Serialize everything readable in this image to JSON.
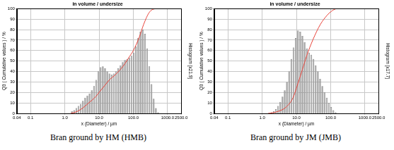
{
  "chart_data": [
    {
      "type": "histogram",
      "title": "in volume / undersize",
      "xlabel": "x (Diameter) / µm",
      "ylabel": "Q3 ( Cumulative values ) / %",
      "y2label": "Histogram [x21.9]",
      "caption": "Bran ground by HM (HMB)",
      "log": "x",
      "grid": true,
      "xlim": [
        0.04,
        2500
      ],
      "xticks": [
        {
          "value": 0.04,
          "label": "0.04"
        },
        0.1,
        {
          "value": 1,
          "label": "1.0"
        },
        {
          "value": 10,
          "label": "10.0"
        },
        {
          "value": 100,
          "label": "100.0"
        },
        {
          "value": 1000,
          "label": "1000.0"
        },
        {
          "value": 2500,
          "label": "2500.0"
        }
      ],
      "ylim": [
        0,
        100
      ],
      "yticks": [
        0,
        10,
        20,
        30,
        40,
        50,
        60,
        70,
        80,
        90,
        100
      ],
      "y2lim": [
        0,
        100
      ],
      "y2ticks": [],
      "series": [
        {
          "type": "bar",
          "axis": "y2",
          "color": "#a8a8a8",
          "bins": [
            1.5,
            1.74,
            2.02,
            2.34,
            2.71,
            3.15,
            3.65,
            4.24,
            4.92,
            5.7,
            6.62,
            7.67,
            8.9,
            10.3,
            12.0,
            13.9,
            16.1,
            18.7,
            21.7,
            25.2,
            29.2,
            33.9,
            39.3,
            45.6,
            52.9,
            61.4,
            71.2,
            82.6,
            95.8,
            111,
            129,
            150,
            174,
            201,
            234,
            271,
            315,
            365,
            423,
            491,
            570
          ],
          "values": [
            2,
            3,
            5,
            7,
            9,
            12,
            15,
            17,
            19,
            22,
            26,
            32,
            40,
            44,
            45,
            43,
            40,
            38,
            37,
            38,
            40,
            43,
            46,
            49,
            51,
            52,
            53,
            55,
            58,
            64,
            72,
            78,
            80,
            76,
            62,
            45,
            28,
            14,
            5,
            1
          ]
        },
        {
          "type": "line",
          "color": "#e8453c",
          "x": [
            1.5,
            2,
            3,
            5,
            8,
            10,
            15,
            20,
            30,
            50,
            80,
            100,
            150,
            200,
            300,
            500,
            800,
            2500
          ],
          "values": [
            0,
            1,
            4,
            10,
            16,
            20,
            27,
            32,
            37,
            45,
            55,
            60,
            73,
            85,
            97,
            100,
            100,
            100
          ]
        }
      ]
    },
    {
      "type": "histogram",
      "title": "in volume / undersize",
      "xlabel": "x (Diameter) / µm",
      "ylabel": "Q3 ( Cumulative values ) / %",
      "y2label": "Histogram [x17.7]",
      "caption": "Bran ground by JM (JMB)",
      "log": "x",
      "grid": true,
      "xlim": [
        0.04,
        2500
      ],
      "xticks": [
        {
          "value": 0.04,
          "label": "0.04"
        },
        0.1,
        {
          "value": 1,
          "label": "1.0"
        },
        {
          "value": 10,
          "label": "10.0"
        },
        {
          "value": 100,
          "label": "100.0"
        },
        {
          "value": 1000,
          "label": "1000.0"
        },
        {
          "value": 2500,
          "label": "2500.0"
        }
      ],
      "ylim": [
        0,
        100
      ],
      "yticks": [
        0,
        10,
        20,
        30,
        40,
        50,
        60,
        70,
        80,
        90,
        100
      ],
      "y2lim": [
        0,
        100
      ],
      "y2ticks": [],
      "series": [
        {
          "type": "bar",
          "axis": "y2",
          "color": "#a8a8a8",
          "bins": [
            1.5,
            1.74,
            2.02,
            2.34,
            2.71,
            3.15,
            3.65,
            4.24,
            4.92,
            5.7,
            6.62,
            7.67,
            8.9,
            10.3,
            12.0,
            13.9,
            16.1,
            18.7,
            21.7,
            25.2,
            29.2,
            33.9,
            39.3,
            45.6,
            52.9,
            61.4,
            71.2,
            82.6,
            95.8,
            111,
            129,
            150,
            174,
            201,
            234,
            271,
            315,
            365,
            423,
            491,
            570
          ],
          "values": [
            0,
            1,
            2,
            4,
            7,
            11,
            16,
            22,
            30,
            40,
            52,
            63,
            72,
            79,
            78,
            74,
            68,
            62,
            58,
            56,
            52,
            46,
            40,
            33,
            26,
            20,
            15,
            10,
            6,
            3,
            1,
            0,
            0,
            0,
            0,
            0,
            0,
            0,
            0,
            0
          ]
        },
        {
          "type": "line",
          "color": "#e8453c",
          "x": [
            1.5,
            2,
            3,
            5,
            8,
            10,
            15,
            20,
            30,
            50,
            80,
            100,
            150,
            200,
            2500
          ],
          "values": [
            0,
            0.5,
            2,
            6,
            15,
            24,
            42,
            55,
            70,
            85,
            94,
            97,
            100,
            100,
            100
          ]
        }
      ]
    }
  ]
}
